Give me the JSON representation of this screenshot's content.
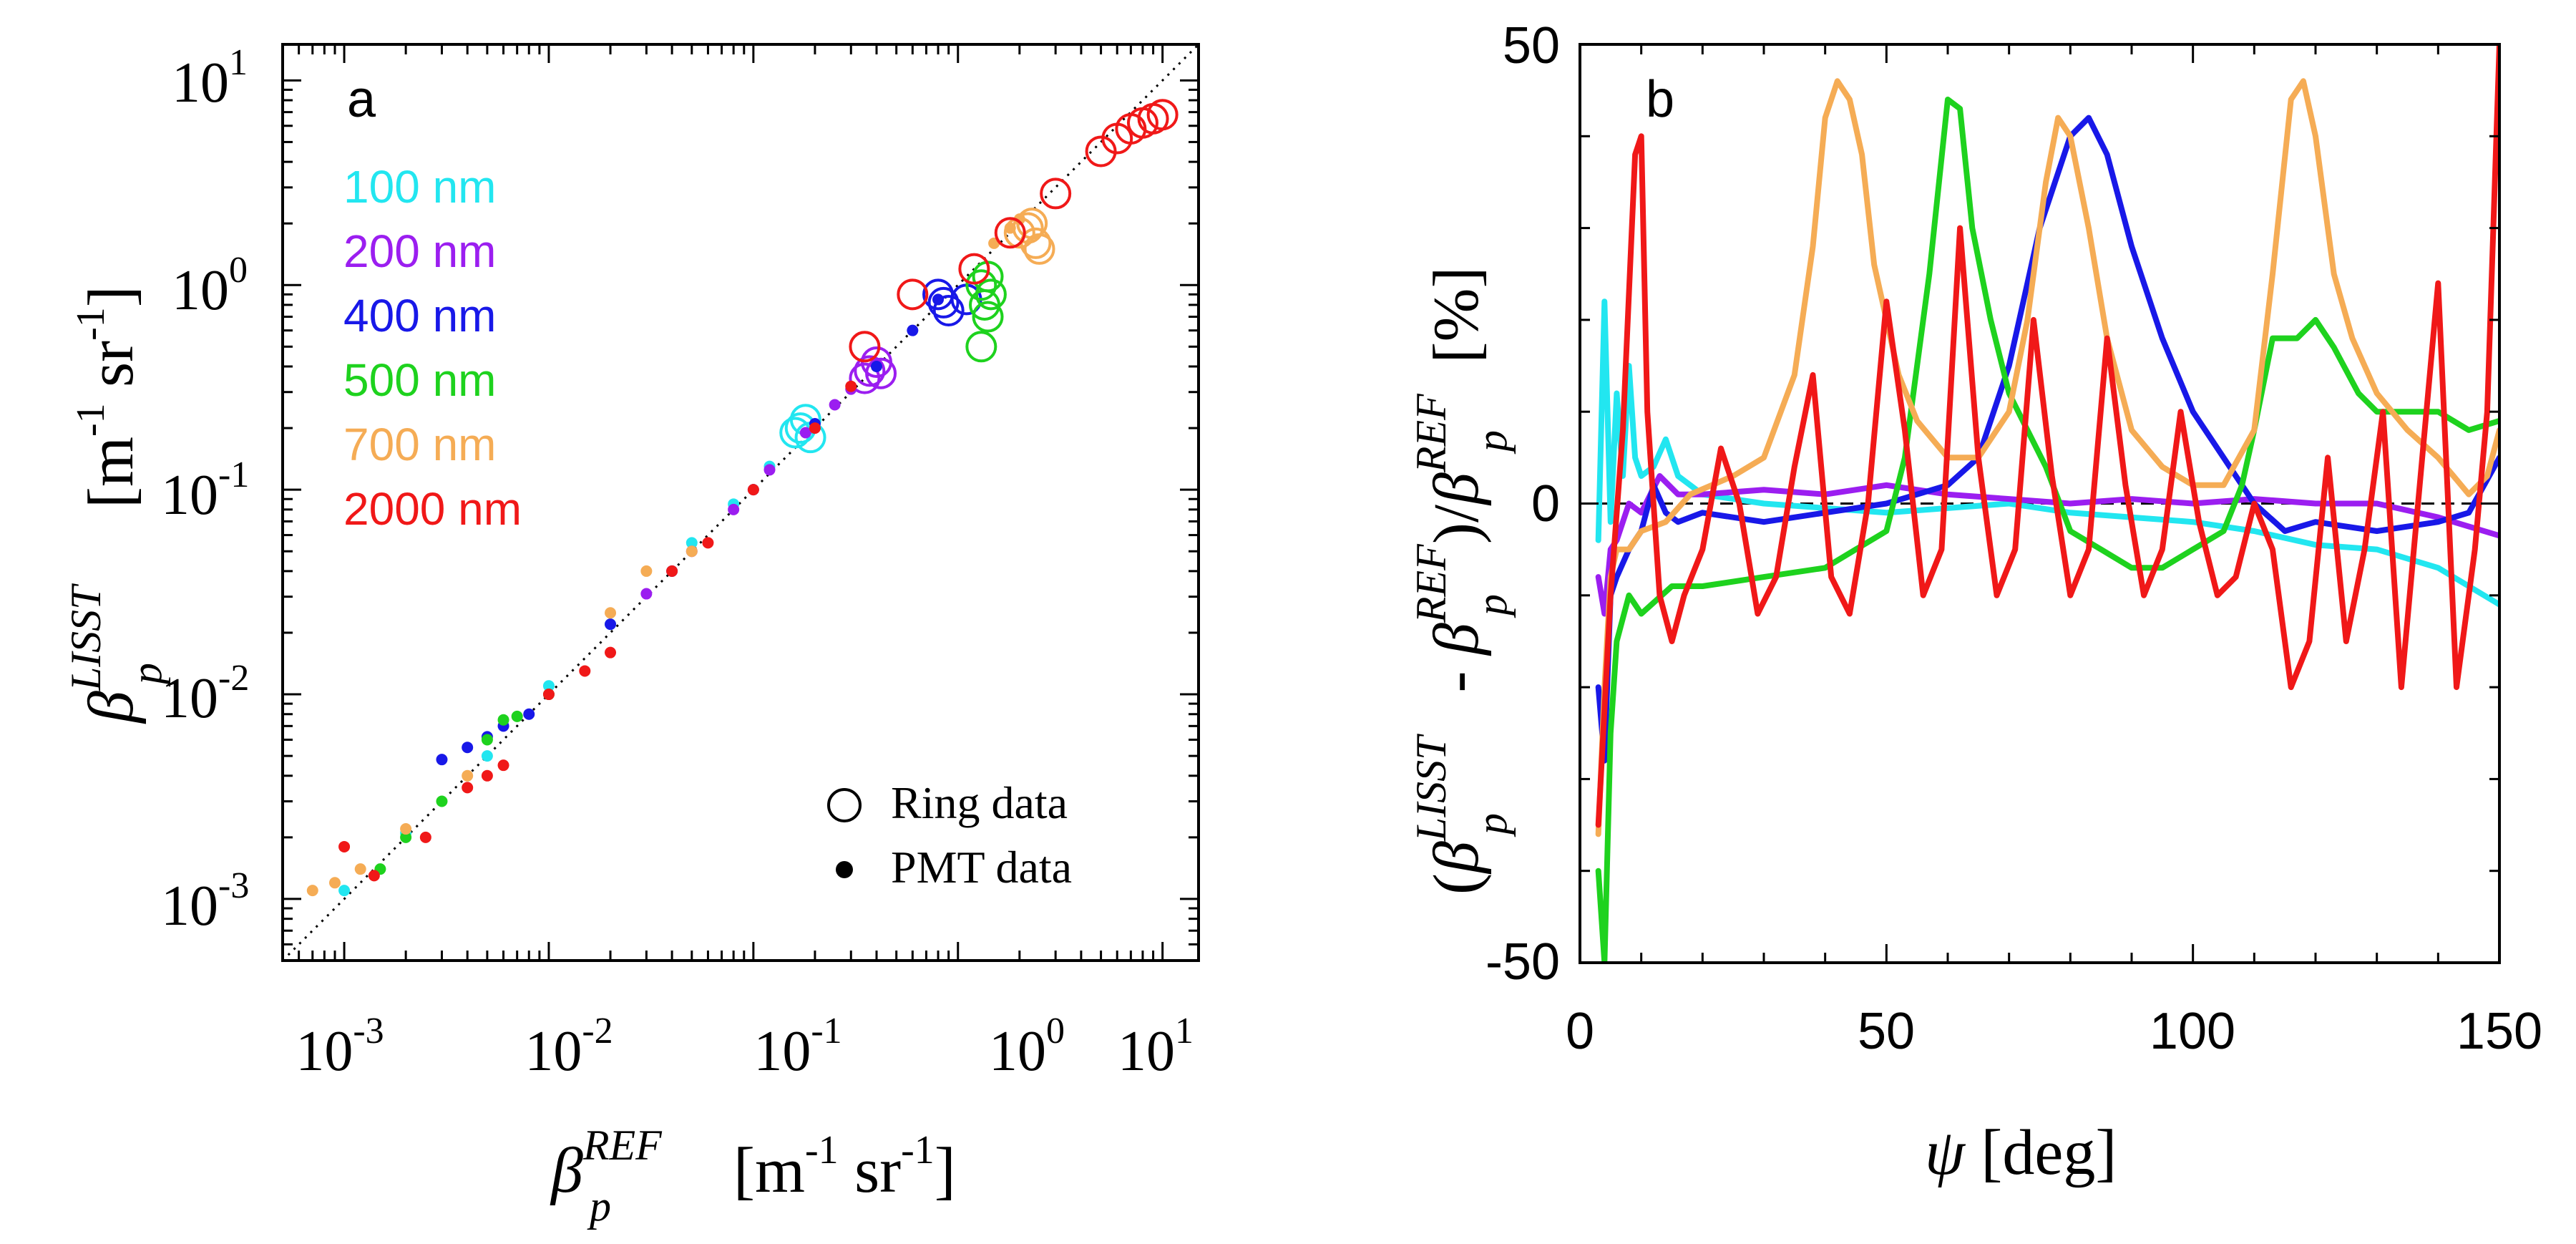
{
  "chart_data": [
    {
      "panel_label": "a",
      "type": "scatter",
      "scale": "log-log",
      "xlim": [
        0.0005,
        15
      ],
      "ylim": [
        0.0005,
        15
      ],
      "x_ticks": [
        {
          "value": 0.001,
          "base": "10",
          "exp": "-3"
        },
        {
          "value": 0.01,
          "base": "10",
          "exp": "-2"
        },
        {
          "value": 0.1,
          "base": "10",
          "exp": "-1"
        },
        {
          "value": 1,
          "base": "10",
          "exp": "0"
        },
        {
          "value": 10,
          "base": "10",
          "exp": "1"
        }
      ],
      "y_ticks": [
        {
          "value": 0.001,
          "base": "10",
          "exp": "-3"
        },
        {
          "value": 0.01,
          "base": "10",
          "exp": "-2"
        },
        {
          "value": 0.1,
          "base": "10",
          "exp": "-1"
        },
        {
          "value": 1,
          "base": "10",
          "exp": "0"
        },
        {
          "value": 10,
          "base": "10",
          "exp": "1"
        }
      ],
      "xlabel": {
        "symbol": "β",
        "sup": "REF",
        "sub": "p",
        "units": "[m",
        "u_exp1": "-1",
        "units2": " sr",
        "u_exp2": "-1",
        "close": "]"
      },
      "ylabel": {
        "symbol": "β",
        "sup": "LISST",
        "sub": "p",
        "units": "[m",
        "u_exp1": "-1",
        "units2": " sr",
        "u_exp2": "-1",
        "close": "]"
      },
      "one_to_one_line": true,
      "series": [
        {
          "name": "100 nm",
          "color": "#22e6f0",
          "ring": [
            [
              0.17,
              0.2
            ],
            [
              0.18,
              0.22
            ],
            [
              0.19,
              0.18
            ],
            [
              0.16,
              0.19
            ]
          ],
          "pmt": [
            [
              0.001,
              0.0011
            ],
            [
              0.002,
              0.0021
            ],
            [
              0.005,
              0.005
            ],
            [
              0.01,
              0.011
            ],
            [
              0.02,
              0.022
            ],
            [
              0.05,
              0.055
            ],
            [
              0.08,
              0.085
            ],
            [
              0.12,
              0.13
            ]
          ]
        },
        {
          "name": "200 nm",
          "color": "#9b1ef0",
          "ring": [
            [
              0.37,
              0.38
            ],
            [
              0.4,
              0.42
            ],
            [
              0.35,
              0.35
            ],
            [
              0.42,
              0.37
            ]
          ],
          "pmt": [
            [
              0.03,
              0.031
            ],
            [
              0.05,
              0.05
            ],
            [
              0.08,
              0.08
            ],
            [
              0.12,
              0.125
            ],
            [
              0.18,
              0.19
            ],
            [
              0.25,
              0.26
            ],
            [
              0.3,
              0.31
            ]
          ]
        },
        {
          "name": "400 nm",
          "color": "#1818e8",
          "ring": [
            [
              0.85,
              0.82
            ],
            [
              0.9,
              0.75
            ],
            [
              0.8,
              0.9
            ],
            [
              1.1,
              0.85
            ]
          ],
          "pmt": [
            [
              0.003,
              0.0048
            ],
            [
              0.004,
              0.0055
            ],
            [
              0.005,
              0.0062
            ],
            [
              0.006,
              0.007
            ],
            [
              0.008,
              0.008
            ],
            [
              0.02,
              0.022
            ],
            [
              0.04,
              0.04
            ],
            [
              0.1,
              0.1
            ],
            [
              0.2,
              0.21
            ],
            [
              0.4,
              0.4
            ],
            [
              0.6,
              0.6
            ],
            [
              0.8,
              0.85
            ]
          ]
        },
        {
          "name": "500 nm",
          "color": "#1ed21e",
          "ring": [
            [
              1.3,
              1.0
            ],
            [
              1.35,
              0.8
            ],
            [
              1.4,
              0.7
            ],
            [
              1.3,
              0.5
            ],
            [
              1.45,
              0.9
            ],
            [
              1.4,
              1.1
            ]
          ],
          "pmt": [
            [
              0.0015,
              0.0014
            ],
            [
              0.002,
              0.002
            ],
            [
              0.003,
              0.003
            ],
            [
              0.005,
              0.006
            ],
            [
              0.006,
              0.0075
            ],
            [
              0.007,
              0.0078
            ],
            [
              0.01,
              0.01
            ]
          ]
        },
        {
          "name": "700 nm",
          "color": "#f5ac55",
          "ring": [
            [
              2.0,
              1.8
            ],
            [
              2.2,
              1.9
            ],
            [
              2.4,
              1.6
            ],
            [
              2.5,
              1.5
            ],
            [
              2.3,
              2.0
            ]
          ],
          "pmt": [
            [
              0.0007,
              0.0011
            ],
            [
              0.0009,
              0.0012
            ],
            [
              0.0012,
              0.0014
            ],
            [
              0.002,
              0.0022
            ],
            [
              0.004,
              0.004
            ],
            [
              0.02,
              0.025
            ],
            [
              0.03,
              0.04
            ],
            [
              0.05,
              0.05
            ],
            [
              1.5,
              1.6
            ],
            [
              1.8,
              1.9
            ],
            [
              2.0,
              2.1
            ]
          ]
        },
        {
          "name": "2000 nm",
          "color": "#f01818",
          "ring": [
            [
              0.35,
              0.5
            ],
            [
              0.6,
              0.9
            ],
            [
              1.2,
              1.2
            ],
            [
              1.8,
              1.8
            ],
            [
              3.0,
              2.8
            ],
            [
              5.0,
              4.5
            ],
            [
              6.0,
              5.2
            ],
            [
              7.0,
              5.8
            ],
            [
              8.0,
              6.2
            ],
            [
              9.0,
              6.5
            ],
            [
              10.0,
              6.8
            ]
          ],
          "pmt": [
            [
              0.001,
              0.0018
            ],
            [
              0.0014,
              0.0013
            ],
            [
              0.0025,
              0.002
            ],
            [
              0.004,
              0.0035
            ],
            [
              0.005,
              0.004
            ],
            [
              0.006,
              0.0045
            ],
            [
              0.01,
              0.01
            ],
            [
              0.015,
              0.013
            ],
            [
              0.02,
              0.016
            ],
            [
              0.04,
              0.04
            ],
            [
              0.06,
              0.055
            ],
            [
              0.1,
              0.1
            ],
            [
              0.2,
              0.2
            ],
            [
              0.3,
              0.32
            ]
          ]
        }
      ],
      "marker_legend": [
        {
          "label": "Ring data",
          "marker": "ring"
        },
        {
          "label": "PMT data",
          "marker": "dot"
        }
      ]
    },
    {
      "panel_label": "b",
      "type": "line",
      "xlim": [
        0,
        150
      ],
      "ylim": [
        -50,
        50
      ],
      "x_ticks": [
        0,
        50,
        100,
        150
      ],
      "y_ticks": [
        -50,
        0,
        50
      ],
      "x_tick_labels": [
        "0",
        "50",
        "100",
        "150"
      ],
      "y_tick_labels": [
        "-50",
        "0",
        "50"
      ],
      "xlabel": {
        "symbol": "ψ",
        "units": " [deg]"
      },
      "ylabel": {
        "open": "(",
        "b1": "β",
        "s1": "LISST",
        "d1": "p",
        "minus": " - ",
        "b2": "β",
        "s2": "REF",
        "d2": "p",
        "slash": ")/",
        "b3": "β",
        "s3": "REF",
        "d3": "p",
        "units": " [%]"
      },
      "zero_line": true,
      "series": [
        {
          "name": "100 nm",
          "color": "#22e6f0",
          "x": [
            3,
            4,
            5,
            6,
            7,
            8,
            9,
            10,
            12,
            14,
            16,
            20,
            30,
            40,
            50,
            60,
            70,
            80,
            90,
            100,
            110,
            120,
            130,
            140,
            150
          ],
          "y": [
            -4,
            22,
            -2,
            12,
            3,
            15,
            5,
            3,
            4,
            7,
            3,
            1,
            0,
            -0.5,
            -1,
            -0.5,
            0,
            -1,
            -1.5,
            -2,
            -3,
            -4.5,
            -5,
            -7,
            -11
          ]
        },
        {
          "name": "200 nm",
          "color": "#9b1ef0",
          "x": [
            3,
            4,
            5,
            6,
            8,
            10,
            13,
            16,
            20,
            30,
            40,
            50,
            60,
            70,
            80,
            90,
            100,
            110,
            120,
            130,
            140,
            150
          ],
          "y": [
            -8,
            -12,
            -5,
            -4,
            0,
            -1,
            3,
            1,
            1,
            1.5,
            1,
            2,
            1,
            0.5,
            0,
            0.5,
            0,
            0.5,
            0,
            0,
            -1.5,
            -3.5
          ]
        },
        {
          "name": "400 nm",
          "color": "#1818e8",
          "x": [
            3,
            4,
            5,
            6,
            8,
            10,
            12,
            14,
            16,
            20,
            30,
            40,
            50,
            55,
            60,
            65,
            70,
            75,
            80,
            83,
            86,
            90,
            95,
            100,
            105,
            110,
            115,
            120,
            130,
            140,
            145,
            150
          ],
          "y": [
            -20,
            -28,
            -10,
            -8,
            -5,
            -3,
            2,
            -1,
            -2,
            -1,
            -2,
            -1,
            0,
            1,
            2,
            5,
            15,
            30,
            40,
            42,
            38,
            28,
            18,
            10,
            5,
            0,
            -3,
            -2,
            -3,
            -2,
            -1,
            5
          ]
        },
        {
          "name": "500 nm",
          "color": "#1ed21e",
          "x": [
            3,
            4,
            5,
            6,
            8,
            10,
            15,
            20,
            30,
            40,
            45,
            50,
            53,
            57,
            60,
            62,
            64,
            67,
            70,
            73,
            76,
            80,
            85,
            90,
            95,
            100,
            105,
            108,
            110,
            113,
            117,
            120,
            123,
            127,
            130,
            140,
            145,
            150
          ],
          "y": [
            -40,
            -50,
            -25,
            -15,
            -10,
            -12,
            -9,
            -9,
            -8,
            -7,
            -5,
            -3,
            5,
            25,
            44,
            43,
            30,
            20,
            12,
            8,
            4,
            -3,
            -5,
            -7,
            -7,
            -5,
            -3,
            2,
            8,
            18,
            18,
            20,
            17,
            12,
            10,
            10,
            8,
            9
          ]
        },
        {
          "name": "700 nm",
          "color": "#f5ac55",
          "x": [
            3,
            4,
            5,
            6,
            8,
            10,
            14,
            18,
            25,
            30,
            35,
            38,
            40,
            42,
            44,
            46,
            48,
            52,
            55,
            60,
            65,
            70,
            73,
            76,
            78,
            80,
            83,
            86,
            90,
            95,
            100,
            105,
            110,
            113,
            116,
            118,
            120,
            123,
            126,
            130,
            135,
            140,
            145,
            148,
            150
          ],
          "y": [
            -36,
            -20,
            -8,
            -5,
            -5,
            -3,
            -2,
            1,
            3,
            5,
            14,
            28,
            42,
            46,
            44,
            38,
            26,
            14,
            9,
            5,
            5,
            10,
            20,
            35,
            42,
            40,
            30,
            18,
            8,
            4,
            2,
            2,
            8,
            25,
            44,
            46,
            40,
            25,
            18,
            12,
            8,
            5,
            1,
            3,
            8
          ]
        },
        {
          "name": "2000 nm",
          "color": "#f01818",
          "x": [
            3,
            5,
            7,
            9,
            10,
            11,
            13,
            15,
            17,
            20,
            23,
            26,
            29,
            32,
            35,
            38,
            41,
            44,
            47,
            50,
            53,
            56,
            59,
            62,
            65,
            68,
            71,
            74,
            77,
            80,
            83,
            86,
            89,
            92,
            95,
            98,
            101,
            104,
            107,
            110,
            113,
            116,
            119,
            122,
            125,
            128,
            131,
            134,
            137,
            140,
            143,
            146,
            148,
            150
          ],
          "y": [
            -35,
            -10,
            8,
            38,
            40,
            10,
            -10,
            -15,
            -10,
            -5,
            6,
            0,
            -12,
            -8,
            4,
            14,
            -8,
            -12,
            0,
            22,
            8,
            -10,
            -5,
            30,
            5,
            -10,
            -5,
            20,
            3,
            -10,
            -5,
            18,
            2,
            -10,
            -5,
            10,
            -2,
            -10,
            -8,
            0,
            -5,
            -20,
            -15,
            5,
            -15,
            -5,
            10,
            -20,
            2,
            24,
            -20,
            -5,
            10,
            50
          ]
        }
      ]
    }
  ]
}
